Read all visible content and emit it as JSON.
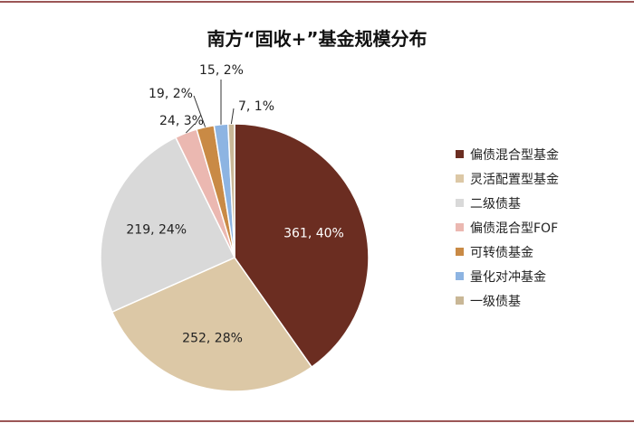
{
  "chart_data": {
    "type": "pie",
    "title": "南方“固收+”基金规模分布",
    "legend_position": "right",
    "slices": [
      {
        "name": "偏债混合型基金",
        "value": 361,
        "percent": "40%",
        "label": "361, 40%",
        "color": "#6b2d21"
      },
      {
        "name": "灵活配置型基金",
        "value": 252,
        "percent": "28%",
        "label": "252, 28%",
        "color": "#dcc8a6"
      },
      {
        "name": "二级债基",
        "value": 219,
        "percent": "24%",
        "label": "219, 24%",
        "color": "#d9d9d9"
      },
      {
        "name": "偏债混合型FOF",
        "value": 24,
        "percent": "3%",
        "label": "24, 3%",
        "color": "#ebb8b1"
      },
      {
        "name": "可转债基金",
        "value": 19,
        "percent": "2%",
        "label": "19, 2%",
        "color": "#c98a45"
      },
      {
        "name": "量化对冲基金",
        "value": 15,
        "percent": "2%",
        "label": "15, 2%",
        "color": "#8db4e2"
      },
      {
        "name": "一级债基",
        "value": 7,
        "percent": "1%",
        "label": "7, 1%",
        "color": "#c9b796"
      }
    ]
  }
}
